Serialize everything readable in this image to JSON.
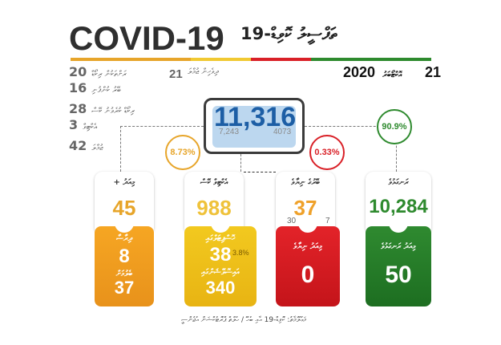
{
  "header": {
    "title": "COVID-19",
    "title_dv": "ތަފްސީލު ކޮވިޑް-19",
    "stripe_colors": [
      "#e7a52a",
      "#e7a52a",
      "#f1c932",
      "#d92027",
      "#2e8a2e",
      "#2e8a2e"
    ]
  },
  "date": {
    "day": "21",
    "month_dv": "އޮކްޓޯބަރު",
    "year": "2020"
  },
  "locale_note": {
    "label_dv": "ދިވެހިން ޖުމްލަ",
    "value": "21"
  },
  "side_stats": [
    {
      "value": "20",
      "label_dv": "ރަށްތަކުން ރިކޯޑް"
    },
    {
      "value": "16",
      "label_dv": "ބޭރު ކުންފުނި"
    },
    {
      "value": "28",
      "label_dv": "ރިކޯޑް ކުރެވުނު ކޭސް"
    },
    {
      "value": "3",
      "label_dv": "އެކްޓިވް"
    },
    {
      "value": "42",
      "label_dv": "ޖުމްލަ"
    }
  ],
  "total": {
    "value": "11,316",
    "sub_left": "7,243",
    "sub_right": "4073"
  },
  "bubbles": {
    "dead_pct": "8.73%",
    "active_pct": "0.33%",
    "recovered_pct": "90.9%"
  },
  "cards": {
    "new_today": {
      "label_dv": "މިއަދު +",
      "value": "45"
    },
    "deaths": {
      "label_dv": "އެކްޓިވް ކޭސް",
      "value": "988"
    },
    "new_active": {
      "label_dv": "ބޭރުގެ ނިޔާވެ",
      "value": "37",
      "sub_left": "30",
      "sub_right": "7"
    },
    "recovered": {
      "label_dv": "ރަނގަޅުވެ",
      "value": "10,284"
    }
  },
  "lower": {
    "orange_label_dv": "ދިރާސާ",
    "orange_value": "8",
    "orange_label2_dv": "ބެލުމަށް",
    "orange_value2": "37",
    "yellow_label_dv": "ހޮސްޕިޓަލްގައި",
    "yellow_value": "38",
    "yellow_pct": "3.8%",
    "yellow_label2_dv": "އައިސޮލޭޝަންގައި",
    "yellow_value2": "340",
    "red_label_dv": "މިއަދު ނިޔާވެ",
    "red_value": "0",
    "green_label_dv": "މިއަދު ރަނގަޅުވެ",
    "green_value": "50"
  },
  "footer_dv": "މަޢުލޫމާތު: ކޮވިޑް-19 އާއި ބެހޭ / ހެލްތް ޕްރޮޓެކްޝަން އެޖެންސީ"
}
